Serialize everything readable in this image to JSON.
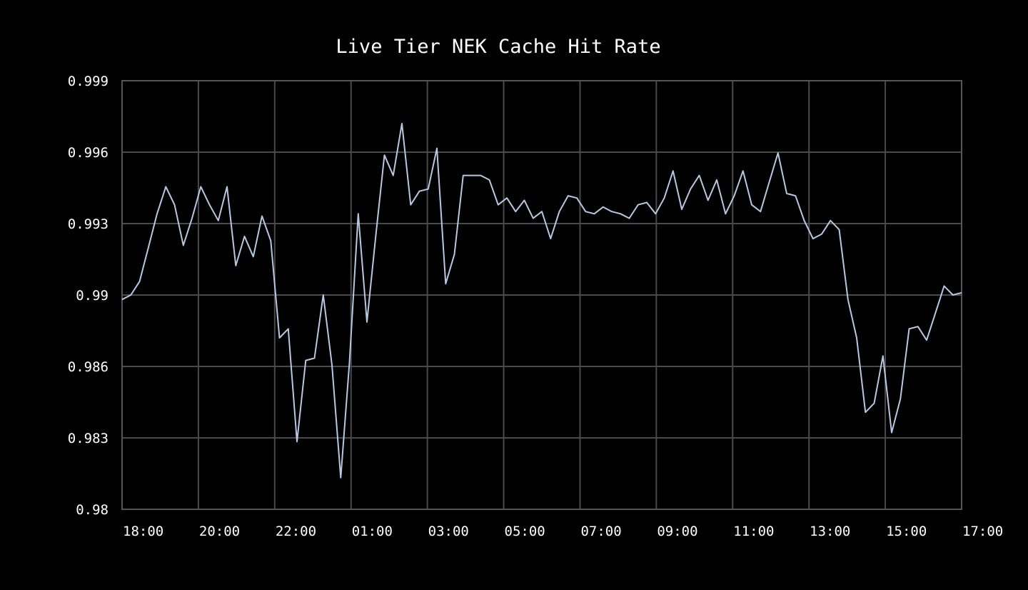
{
  "chart_data": {
    "type": "line",
    "title": "Live Tier NEK Cache Hit Rate",
    "xlabel": "",
    "ylabel": "",
    "x_ticks": [
      "18:00",
      "20:00",
      "22:00",
      "01:00",
      "03:00",
      "05:00",
      "07:00",
      "09:00",
      "11:00",
      "13:00",
      "15:00",
      "17:00"
    ],
    "y_ticks": [
      "0.999",
      "0.996",
      "0.993",
      "0.99",
      "0.986",
      "0.983",
      "0.98"
    ],
    "y_tick_values": [
      0.999,
      0.996,
      0.993,
      0.99,
      0.986,
      0.983,
      0.98
    ],
    "ylim": [
      0.98,
      0.999
    ],
    "grid": true,
    "legend": "none",
    "colors": {
      "background": "#000000",
      "line": "#b8c8e0",
      "grid": "#4a4a4a",
      "text": "#ffffff"
    },
    "series": [
      {
        "values": [
          0.9893,
          0.9895,
          0.9901,
          0.9916,
          0.9931,
          0.9943,
          0.9935,
          0.9917,
          0.9929,
          0.9943,
          0.9935,
          0.9928,
          0.9943,
          0.9908,
          0.9921,
          0.9912,
          0.993,
          0.9919,
          0.9876,
          0.988,
          0.983,
          0.9866,
          0.9867,
          0.9895,
          0.9864,
          0.9814,
          0.9865,
          0.9931,
          0.9883,
          0.9921,
          0.9957,
          0.9948,
          0.9971,
          0.9935,
          0.9941,
          0.9942,
          0.996,
          0.99,
          0.9913,
          0.9948,
          0.9948,
          0.9948,
          0.9946,
          0.9935,
          0.9938,
          0.9932,
          0.9937,
          0.9929,
          0.9932,
          0.992,
          0.9932,
          0.9939,
          0.9938,
          0.9932,
          0.9931,
          0.9934,
          0.9932,
          0.9931,
          0.9929,
          0.9935,
          0.9936,
          0.9931,
          0.9938,
          0.995,
          0.9933,
          0.9942,
          0.9948,
          0.9937,
          0.9946,
          0.9931,
          0.9939,
          0.995,
          0.9935,
          0.9932,
          0.9945,
          0.9958,
          0.994,
          0.9939,
          0.9928,
          0.992,
          0.9922,
          0.9928,
          0.9924,
          0.9893,
          0.9876,
          0.9843,
          0.9847,
          0.9868,
          0.9834,
          0.9849,
          0.988,
          0.9881,
          0.9875,
          0.9887,
          0.9899,
          0.9895,
          0.9896
        ]
      }
    ]
  }
}
